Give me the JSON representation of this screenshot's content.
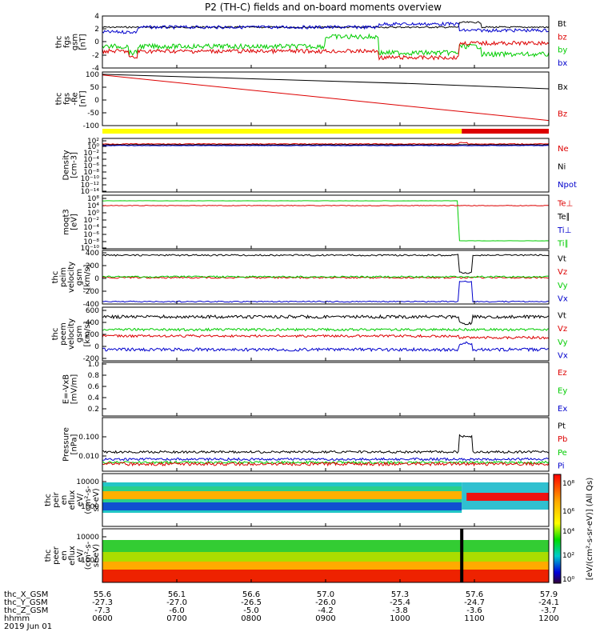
{
  "title": "P2 (TH-C) fields and on-board moments overview",
  "colors": {
    "black": "#000000",
    "red": "#dd0000",
    "green": "#00cc00",
    "blue": "#0000cc",
    "yellow": "#ffff00"
  },
  "chart_data": [
    {
      "type": "line",
      "ylabel": [
        "thc",
        "fgs",
        "gsm",
        "[nT]"
      ],
      "yticks": [
        "4",
        "2",
        "0",
        "-2",
        "-4"
      ],
      "ylim": [
        -4,
        4
      ],
      "legend": [
        {
          "text": "Bt",
          "color": "black"
        },
        {
          "text": "bz",
          "color": "red"
        },
        {
          "text": "by",
          "color": "green"
        },
        {
          "text": "bx",
          "color": "blue"
        }
      ]
    },
    {
      "type": "line",
      "ylabel": [
        "thc",
        "fgs",
        "-Re",
        "[nT]"
      ],
      "yticks": [
        "100",
        "50",
        "0",
        "-50",
        "-100"
      ],
      "ylim": [
        -120,
        110
      ],
      "legend": [
        {
          "text": "Bx",
          "color": "black"
        },
        {
          "text": "Bz",
          "color": "red"
        }
      ],
      "series": [
        {
          "name": "Bx",
          "x": [
            0,
            0.7,
            1
          ],
          "values": [
            100,
            60,
            38
          ]
        },
        {
          "name": "Bz",
          "x": [
            0,
            1
          ],
          "values": [
            97,
            -98
          ]
        }
      ]
    },
    {
      "type": "line",
      "ylabel": [
        "Density",
        "[cm-3]"
      ],
      "yticks": [
        "10²",
        "10⁰",
        "10⁻²",
        "10⁻⁴",
        "10⁻⁶",
        "10⁻⁸",
        "10⁻¹⁰",
        "10⁻¹²",
        "10⁻¹⁴"
      ],
      "scale": "log",
      "legend": [
        {
          "text": "Ne",
          "color": "red"
        },
        {
          "text": "Ni",
          "color": "black"
        },
        {
          "text": "Npot",
          "color": "blue"
        }
      ]
    },
    {
      "type": "line",
      "ylabel": [
        "moqt3",
        "[eV]"
      ],
      "yticks": [
        "10⁸",
        "10⁴",
        "10⁰",
        "10⁻²",
        "10⁻⁴",
        "10⁻⁶",
        "10⁻⁸",
        "10⁻¹⁰"
      ],
      "scale": "log",
      "legend": [
        {
          "text": "Te⊥",
          "color": "red"
        },
        {
          "text": "Te∥",
          "color": "black"
        },
        {
          "text": "Ti⊥",
          "color": "blue"
        },
        {
          "text": "Ti∥",
          "color": "green"
        }
      ]
    },
    {
      "type": "line",
      "ylabel": [
        "thc",
        "peim",
        "velocity",
        "gsm",
        "[km/s]"
      ],
      "yticks": [
        "400",
        "200",
        "0",
        "-200",
        "-400"
      ],
      "ylim": [
        -450,
        450
      ],
      "legend": [
        {
          "text": "Vt",
          "color": "black"
        },
        {
          "text": "Vz",
          "color": "red"
        },
        {
          "text": "Vy",
          "color": "green"
        },
        {
          "text": "Vx",
          "color": "blue"
        }
      ]
    },
    {
      "type": "line",
      "ylabel": [
        "thc",
        "peem",
        "velocity",
        "gsm",
        "[km/s]"
      ],
      "yticks": [
        "600",
        "400",
        "200",
        "0",
        "-200",
        "-400",
        "-600"
      ],
      "ylim": [
        -700,
        700
      ],
      "legend": [
        {
          "text": "Vt",
          "color": "black"
        },
        {
          "text": "Vz",
          "color": "red"
        },
        {
          "text": "Vy",
          "color": "green"
        },
        {
          "text": "Vx",
          "color": "blue"
        }
      ]
    },
    {
      "type": "line",
      "ylabel": [
        "E=-VxB",
        "[mV/m]"
      ],
      "yticks": [
        "1.0",
        "0.8",
        "0.6",
        "0.4",
        "0.2",
        "0.0"
      ],
      "ylim": [
        0,
        1
      ],
      "legend": [
        {
          "text": "Ez",
          "color": "red"
        },
        {
          "text": "Ey",
          "color": "green"
        },
        {
          "text": "Ex",
          "color": "blue"
        }
      ]
    },
    {
      "type": "line",
      "ylabel": [
        "Pressure",
        "[nPa]"
      ],
      "yticks": [
        "0.100",
        "0.010",
        "0.001"
      ],
      "scale": "log",
      "legend": [
        {
          "text": "Pt",
          "color": "black"
        },
        {
          "text": "Pb",
          "color": "red"
        },
        {
          "text": "Pe",
          "color": "green"
        },
        {
          "text": "Pi",
          "color": "blue"
        }
      ]
    },
    {
      "type": "heatmap",
      "ylabel": [
        "thc",
        "peir",
        "en",
        "eflux",
        "eV/",
        "(cm²-s-",
        "sr-eV)"
      ],
      "yticks": [
        "10000",
        "1000",
        "100",
        "10"
      ],
      "scale": "log"
    },
    {
      "type": "heatmap",
      "ylabel": [
        "thc",
        "peer",
        "en",
        "eflux",
        "eV/",
        "(cm²-s-",
        "sr-eV)"
      ],
      "yticks": [
        "10000",
        "1000",
        "100",
        "10"
      ],
      "scale": "log"
    }
  ],
  "colorbar": {
    "label": "[eV/(cm²-s-sr-eV)] (All Qs)",
    "ticks": [
      "10⁸",
      "10⁶",
      "10⁴",
      "10²",
      "10⁰"
    ]
  },
  "xaxis": {
    "row_labels": [
      "thc_X_GSM",
      "thc_Y_GSM",
      "thc_Z_GSM",
      "hhmm",
      "2019 Jun 01"
    ],
    "columns": [
      [
        "55.6",
        "-27.3",
        "-7.3",
        "0600"
      ],
      [
        "56.1",
        "-27.0",
        "-6.0",
        "0700"
      ],
      [
        "56.6",
        "-26.5",
        "-5.0",
        "0800"
      ],
      [
        "57.0",
        "-26.0",
        "-4.2",
        "0900"
      ],
      [
        "57.3",
        "-25.4",
        "-3.8",
        "1000"
      ],
      [
        "57.6",
        "-24.7",
        "-3.6",
        "1100"
      ],
      [
        "57.9",
        "-24.1",
        "-3.7",
        "1200"
      ]
    ]
  }
}
